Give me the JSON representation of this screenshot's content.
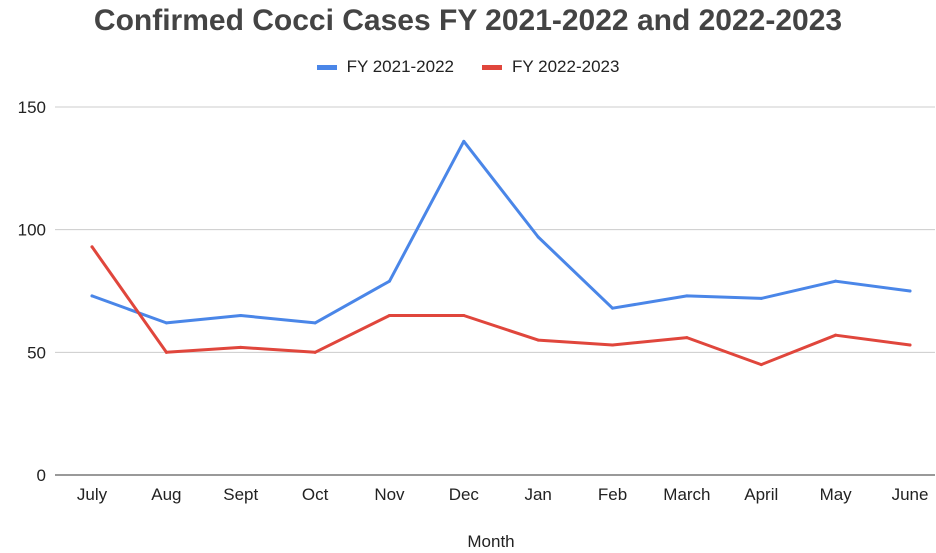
{
  "chart_data": {
    "type": "line",
    "title": "Confirmed Cocci Cases FY 2021-2022 and 2022-2023",
    "xlabel": "Month",
    "ylabel": "",
    "categories": [
      "July",
      "Aug",
      "Sept",
      "Oct",
      "Nov",
      "Dec",
      "Jan",
      "Feb",
      "March",
      "April",
      "May",
      "June"
    ],
    "series": [
      {
        "name": "FY 2021-2022",
        "color": "#4a86e8",
        "values": [
          73,
          62,
          65,
          62,
          79,
          136,
          97,
          68,
          73,
          72,
          79,
          75
        ]
      },
      {
        "name": "FY 2022-2023",
        "color": "#e0463c",
        "values": [
          93,
          50,
          52,
          50,
          65,
          65,
          55,
          53,
          56,
          45,
          57,
          53
        ]
      }
    ],
    "ylim": [
      0,
      150
    ],
    "yticks": [
      0,
      50,
      100,
      150
    ],
    "grid": true,
    "legend_position": "top"
  }
}
